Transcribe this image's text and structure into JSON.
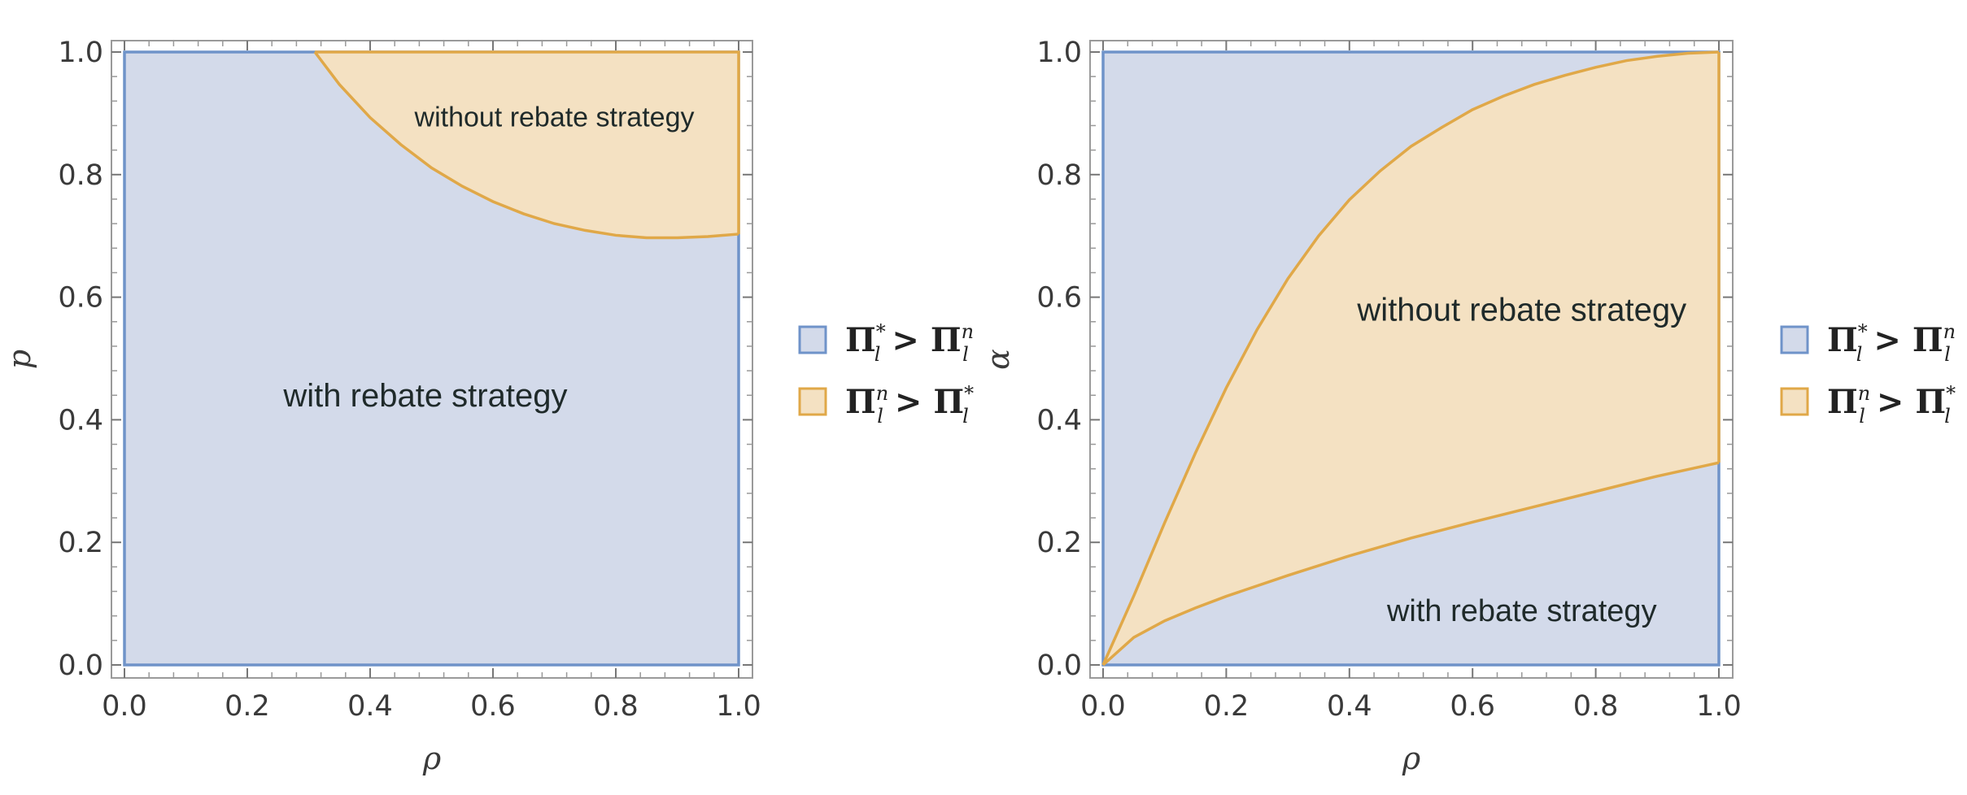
{
  "colors": {
    "blue_fill": "#d3daea",
    "blue_line": "#6f93c9",
    "orange_fill": "#f4e1c2",
    "orange_line": "#e0a848",
    "frame": "#9a9a9a"
  },
  "chart_data": [
    {
      "type": "area",
      "title": "",
      "xlabel": "ρ",
      "ylabel": "p",
      "xlim": [
        0,
        1
      ],
      "ylim": [
        0,
        1
      ],
      "xticks": [
        "0.0",
        "0.2",
        "0.4",
        "0.6",
        "0.8",
        "1.0"
      ],
      "yticks": [
        "0.0",
        "0.2",
        "0.4",
        "0.6",
        "0.8",
        "1.0"
      ],
      "grid": false,
      "legend_placement": "right",
      "legend": [
        {
          "base": "Π",
          "sup": "*",
          "sub": "l",
          "op": ">",
          "base2": "Π",
          "sup2": "n",
          "sub2": "l",
          "color": "blue"
        },
        {
          "base": "Π",
          "sup": "n",
          "sub": "l",
          "op": ">",
          "base2": "Π",
          "sup2": "*",
          "sub2": "l",
          "color": "orange"
        }
      ],
      "regions": [
        {
          "label": "with rebate strategy",
          "color": "blue",
          "label_at": [
            0.49,
            0.44
          ]
        },
        {
          "label": "without rebate strategy",
          "color": "orange",
          "label_at": [
            0.7,
            0.897
          ]
        }
      ],
      "boundary": {
        "x": [
          0.31,
          0.35,
          0.4,
          0.45,
          0.5,
          0.55,
          0.6,
          0.65,
          0.7,
          0.75,
          0.8,
          0.85,
          0.9,
          0.95,
          1.0
        ],
        "y": [
          1.0,
          0.947,
          0.893,
          0.849,
          0.811,
          0.781,
          0.756,
          0.736,
          0.72,
          0.709,
          0.701,
          0.697,
          0.697,
          0.699,
          0.703
        ]
      }
    },
    {
      "type": "area",
      "title": "",
      "xlabel": "ρ",
      "ylabel": "α",
      "xlim": [
        0,
        1
      ],
      "ylim": [
        0,
        1
      ],
      "xticks": [
        "0.0",
        "0.2",
        "0.4",
        "0.6",
        "0.8",
        "1.0"
      ],
      "yticks": [
        "0.0",
        "0.2",
        "0.4",
        "0.6",
        "0.8",
        "1.0"
      ],
      "grid": false,
      "legend_placement": "right",
      "legend": [
        {
          "base": "Π",
          "sup": "*",
          "sub": "l",
          "op": ">",
          "base2": "Π",
          "sup2": "n",
          "sub2": "l",
          "color": "blue"
        },
        {
          "base": "Π",
          "sup": "n",
          "sub": "l",
          "op": ">",
          "base2": "Π",
          "sup2": "*",
          "sub2": "l",
          "color": "orange"
        }
      ],
      "regions": [
        {
          "label": "without rebate strategy",
          "color": "orange",
          "label_at": [
            0.68,
            0.58
          ]
        },
        {
          "label": "with rebate strategy",
          "color": "blue",
          "label_at": [
            0.68,
            0.09
          ]
        }
      ],
      "upper_boundary": {
        "x": [
          0.0,
          0.05,
          0.1,
          0.15,
          0.2,
          0.25,
          0.3,
          0.35,
          0.4,
          0.45,
          0.5,
          0.55,
          0.6,
          0.65,
          0.7,
          0.75,
          0.8,
          0.85,
          0.9,
          0.95,
          1.0
        ],
        "y": [
          0.0,
          0.113,
          0.232,
          0.346,
          0.452,
          0.547,
          0.63,
          0.7,
          0.759,
          0.806,
          0.846,
          0.877,
          0.906,
          0.928,
          0.947,
          0.962,
          0.975,
          0.986,
          0.993,
          0.998,
          1.0
        ]
      },
      "lower_boundary": {
        "x": [
          0.0,
          0.05,
          0.1,
          0.15,
          0.2,
          0.3,
          0.4,
          0.5,
          0.6,
          0.7,
          0.8,
          0.9,
          1.0
        ],
        "y": [
          0.0,
          0.045,
          0.072,
          0.093,
          0.112,
          0.146,
          0.178,
          0.207,
          0.233,
          0.258,
          0.283,
          0.308,
          0.33
        ]
      }
    }
  ]
}
